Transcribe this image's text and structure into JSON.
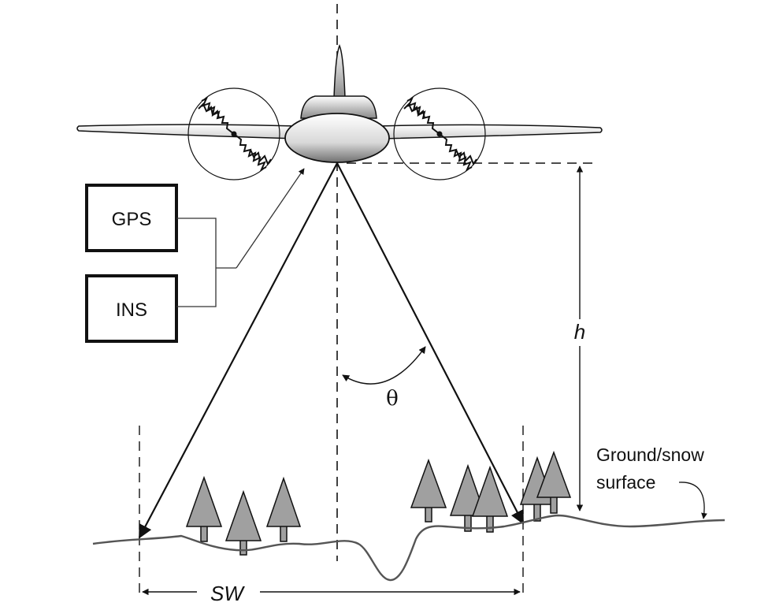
{
  "labels": {
    "gps": "GPS",
    "ins": "INS",
    "height": "h",
    "angle": "θ",
    "ground_line1": "Ground/snow",
    "ground_line2": "surface",
    "swath": "SW"
  },
  "colors": {
    "stroke": "#111111",
    "tree_fill": "#a0a0a0",
    "ground_line": "#555555",
    "propeller_disk": "#ffffff"
  }
}
